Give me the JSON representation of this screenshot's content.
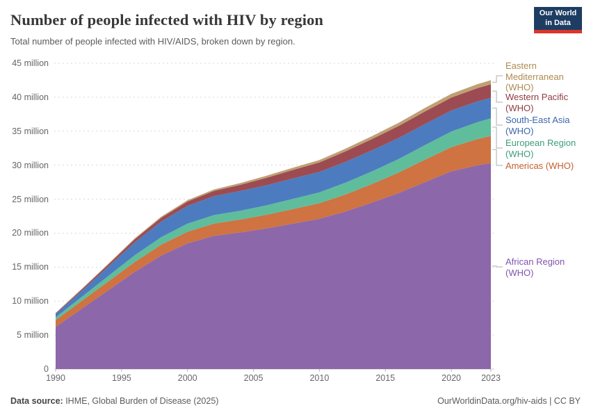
{
  "header": {
    "title": "Number of people infected with HIV by region",
    "subtitle": "Total number of people infected with HIV/AIDS, broken down by region."
  },
  "logo": {
    "line1": "Our World",
    "line2": "in Data",
    "bg_color": "#1d3d63",
    "accent_color": "#dc352c"
  },
  "footer": {
    "source_label": "Data source:",
    "source_value": " IHME, Global Burden of Disease (2025)",
    "link": "OurWorldinData.org/hiv-aids",
    "license": " | CC BY"
  },
  "chart_data": {
    "type": "area",
    "stacked": true,
    "title": "Number of people infected with HIV by region",
    "xlabel": "",
    "ylabel": "",
    "unit": "million people",
    "x_range": [
      1990,
      2023
    ],
    "ylim": [
      0,
      45
    ],
    "grid": "dashed-horizontal",
    "legend_position": "right-edge-labels",
    "years": [
      1990,
      1992,
      1994,
      1996,
      1998,
      2000,
      2002,
      2004,
      2006,
      2008,
      2010,
      2012,
      2014,
      2016,
      2018,
      2020,
      2022,
      2023
    ],
    "series": [
      {
        "id": "african-region",
        "name": "African Region (WHO)",
        "color": "#8c67aa",
        "values": [
          6.2,
          8.9,
          11.6,
          14.3,
          16.7,
          18.5,
          19.6,
          20.1,
          20.7,
          21.4,
          22.1,
          23.2,
          24.5,
          25.9,
          27.5,
          29.1,
          30.0,
          30.3
        ]
      },
      {
        "id": "americas",
        "name": "Americas (WHO)",
        "color": "#ce7341",
        "values": [
          1.0,
          1.15,
          1.3,
          1.45,
          1.6,
          1.7,
          1.8,
          1.9,
          2.0,
          2.15,
          2.3,
          2.5,
          2.75,
          3.0,
          3.3,
          3.55,
          3.85,
          4.0
        ]
      },
      {
        "id": "european-region",
        "name": "European Region (WHO)",
        "color": "#5fbd9c",
        "values": [
          0.4,
          0.6,
          0.8,
          1.0,
          1.1,
          1.2,
          1.25,
          1.3,
          1.4,
          1.5,
          1.6,
          1.75,
          1.85,
          2.0,
          2.15,
          2.3,
          2.5,
          2.6
        ]
      },
      {
        "id": "south-east-asia",
        "name": "South-East Asia (WHO)",
        "color": "#4c7cbf",
        "values": [
          0.5,
          0.9,
          1.4,
          1.9,
          2.3,
          2.6,
          2.8,
          2.9,
          2.95,
          3.0,
          3.0,
          3.05,
          3.1,
          3.1,
          3.1,
          3.1,
          3.05,
          3.0
        ]
      },
      {
        "id": "western-pacific",
        "name": "Western Pacific (WHO)",
        "color": "#9d4b52",
        "values": [
          0.1,
          0.2,
          0.3,
          0.45,
          0.55,
          0.65,
          0.75,
          0.9,
          1.1,
          1.25,
          1.4,
          1.55,
          1.65,
          1.75,
          1.85,
          1.9,
          1.95,
          2.0
        ]
      },
      {
        "id": "eastern-mediterranean",
        "name": "Eastern Mediterranean (WHO)",
        "color": "#bfa074",
        "values": [
          0.05,
          0.08,
          0.1,
          0.14,
          0.17,
          0.2,
          0.23,
          0.27,
          0.3,
          0.33,
          0.36,
          0.4,
          0.44,
          0.48,
          0.52,
          0.55,
          0.58,
          0.6
        ]
      }
    ],
    "legend": [
      {
        "label": "Eastern Mediterranean (WHO)",
        "color": "#ae8a4f"
      },
      {
        "label": "Western Pacific (WHO)",
        "color": "#8d3a42"
      },
      {
        "label": "South-East Asia (WHO)",
        "color": "#3b66ae"
      },
      {
        "label": "European Region (WHO)",
        "color": "#3e9c7d"
      },
      {
        "label": "Americas (WHO)",
        "color": "#c35f2d"
      },
      {
        "label": "African Region (WHO)",
        "color": "#8155ad"
      }
    ],
    "yticks": [
      {
        "value": 0,
        "label": "0"
      },
      {
        "value": 5,
        "label": "5 million"
      },
      {
        "value": 10,
        "label": "10 million"
      },
      {
        "value": 15,
        "label": "15 million"
      },
      {
        "value": 20,
        "label": "20 million"
      },
      {
        "value": 25,
        "label": "25 million"
      },
      {
        "value": 30,
        "label": "30 million"
      },
      {
        "value": 35,
        "label": "35 million"
      },
      {
        "value": 40,
        "label": "40 million"
      },
      {
        "value": 45,
        "label": "45 million"
      }
    ],
    "xticks": [
      1990,
      1995,
      2000,
      2005,
      2010,
      2015,
      2020,
      2023
    ]
  }
}
